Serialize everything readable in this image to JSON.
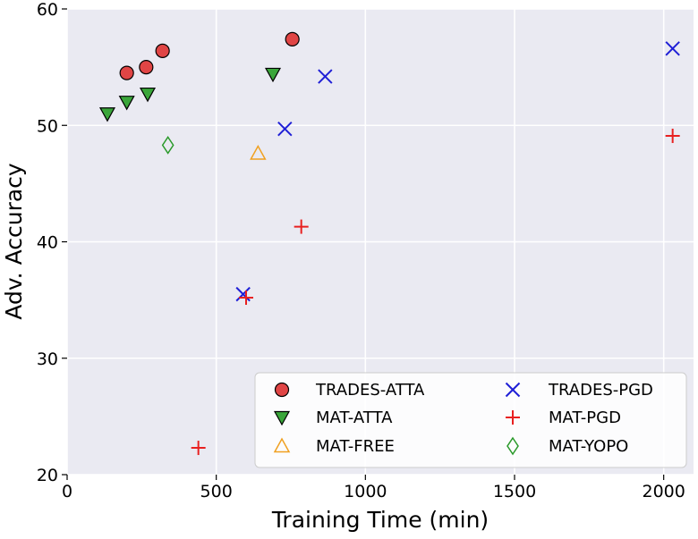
{
  "chart_data": {
    "type": "scatter",
    "xlabel": "Training Time (min)",
    "ylabel": "Adv. Accuracy",
    "xlim": [
      0,
      2100
    ],
    "ylim": [
      20,
      60
    ],
    "xticks": [
      "0",
      "500",
      "1000",
      "1500",
      "2000"
    ],
    "yticks": [
      "20",
      "30",
      "40",
      "50",
      "60"
    ],
    "grid": true,
    "background": "#eaeaf2",
    "legend_placement": "lower-right",
    "legend_columns": 2,
    "series": [
      {
        "name": "TRADES-ATTA",
        "marker": "circle",
        "color": "#e04545",
        "points": [
          [
            200,
            54.5
          ],
          [
            265,
            55.0
          ],
          [
            320,
            56.4
          ],
          [
            755,
            57.4
          ]
        ]
      },
      {
        "name": "MAT-ATTA",
        "marker": "triangle-down",
        "color": "#3aa63a",
        "points": [
          [
            135,
            51.0
          ],
          [
            200,
            52.0
          ],
          [
            270,
            52.7
          ],
          [
            690,
            54.4
          ]
        ]
      },
      {
        "name": "MAT-FREE",
        "marker": "triangle-up",
        "color": "#f0a020",
        "points": [
          [
            640,
            47.6
          ]
        ]
      },
      {
        "name": "TRADES-PGD",
        "marker": "x",
        "color": "#1f1fd6",
        "points": [
          [
            590,
            35.5
          ],
          [
            730,
            49.7
          ],
          [
            865,
            54.2
          ],
          [
            2030,
            56.6
          ]
        ]
      },
      {
        "name": "MAT-PGD",
        "marker": "plus",
        "color": "#e82020",
        "points": [
          [
            440,
            22.3
          ],
          [
            600,
            35.2
          ],
          [
            785,
            41.3
          ],
          [
            2030,
            49.1
          ]
        ]
      },
      {
        "name": "MAT-YOPO",
        "marker": "diamond",
        "color": "#2a9a2a",
        "points": [
          [
            338,
            48.3
          ]
        ]
      }
    ]
  }
}
